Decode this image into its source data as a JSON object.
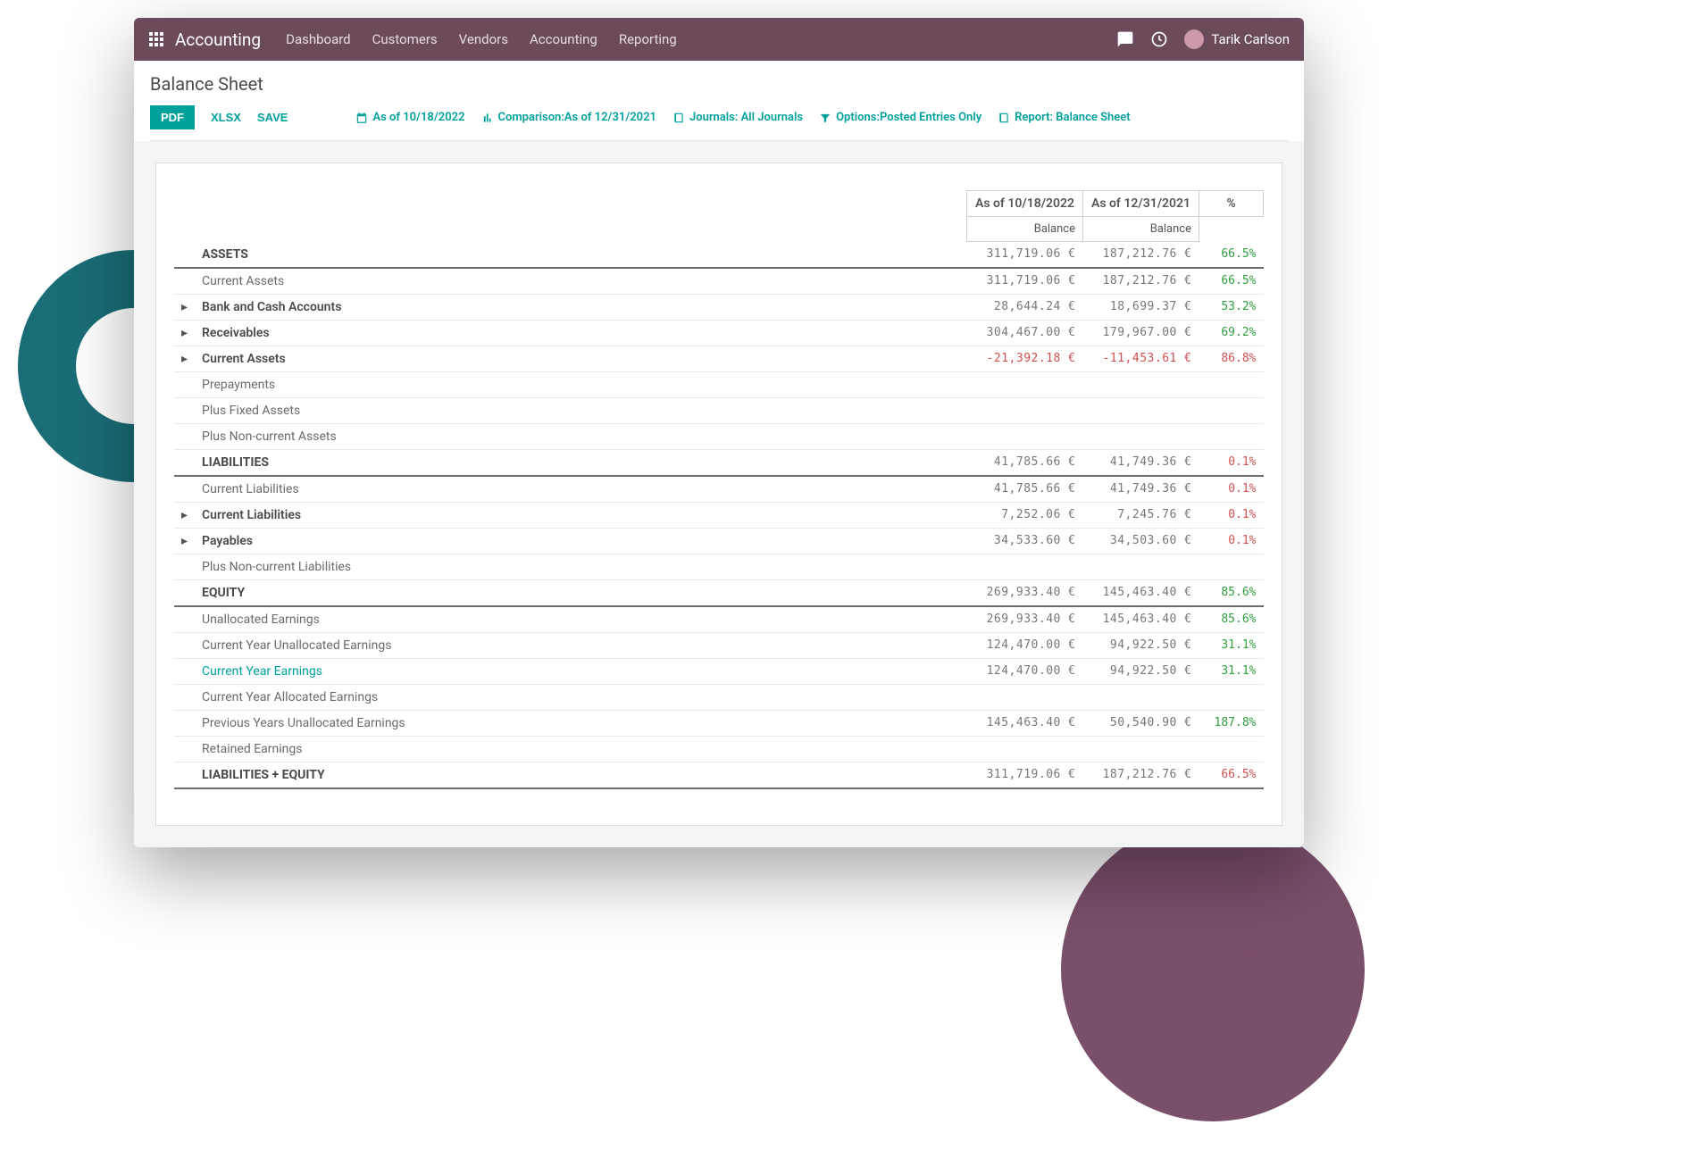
{
  "colors": {
    "accent": "#00a09d",
    "topbar": "#6b4a5b",
    "positive": "#2e9e3f",
    "negative": "#d35050",
    "bg_teal": "#1a6d77",
    "bg_purple": "#7a4f6a"
  },
  "topbar": {
    "app_name": "Accounting",
    "nav": [
      "Dashboard",
      "Customers",
      "Vendors",
      "Accounting",
      "Reporting"
    ],
    "user_name": "Tarik Carlson"
  },
  "page": {
    "title": "Balance Sheet"
  },
  "toolbar": {
    "pdf": "PDF",
    "xlsx": "XLSX",
    "save": "SAVE",
    "as_of": "As of 10/18/2022",
    "comparison": "Comparison:As of 12/31/2021",
    "journals": "Journals: All Journals",
    "options": "Options:Posted Entries Only",
    "report": "Report: Balance Sheet"
  },
  "table": {
    "header": {
      "col1": "As of 10/18/2022",
      "col2": "As of 12/31/2021",
      "pct": "%",
      "balance": "Balance"
    },
    "rows": [
      {
        "label": "ASSETS",
        "indent": 0,
        "section": true,
        "v1": "311,719.06 €",
        "v2": "187,212.76 €",
        "pct": "66.5%",
        "pct_sign": "pos"
      },
      {
        "label": "Current Assets",
        "indent": 1,
        "v1": "311,719.06 €",
        "v2": "187,212.76 €",
        "pct": "66.5%",
        "pct_sign": "pos"
      },
      {
        "label": "Bank and Cash Accounts",
        "indent": 2,
        "caret": true,
        "v1": "28,644.24 €",
        "v2": "18,699.37 €",
        "pct": "53.2%",
        "pct_sign": "pos"
      },
      {
        "label": "Receivables",
        "indent": 2,
        "caret": true,
        "v1": "304,467.00 €",
        "v2": "179,967.00 €",
        "pct": "69.2%",
        "pct_sign": "pos"
      },
      {
        "label": "Current Assets",
        "indent": 2,
        "caret": true,
        "v1": "-21,392.18 €",
        "v1_neg": true,
        "v2": "-11,453.61 €",
        "v2_neg": true,
        "pct": "86.8%",
        "pct_sign": "neg"
      },
      {
        "label": "Prepayments",
        "indent": 2,
        "light": true
      },
      {
        "label": "Plus Fixed Assets",
        "indent": 1
      },
      {
        "label": "Plus Non-current Assets",
        "indent": 1
      },
      {
        "label": "LIABILITIES",
        "indent": 0,
        "section": true,
        "v1": "41,785.66 €",
        "v2": "41,749.36 €",
        "pct": "0.1%",
        "pct_sign": "neg"
      },
      {
        "label": "Current Liabilities",
        "indent": 1,
        "v1": "41,785.66 €",
        "v2": "41,749.36 €",
        "pct": "0.1%",
        "pct_sign": "neg"
      },
      {
        "label": "Current Liabilities",
        "indent": 2,
        "caret": true,
        "v1": "7,252.06 €",
        "v2": "7,245.76 €",
        "pct": "0.1%",
        "pct_sign": "neg"
      },
      {
        "label": "Payables",
        "indent": 2,
        "caret": true,
        "v1": "34,533.60 €",
        "v2": "34,503.60 €",
        "pct": "0.1%",
        "pct_sign": "neg"
      },
      {
        "label": "Plus Non-current Liabilities",
        "indent": 1
      },
      {
        "label": "EQUITY",
        "indent": 0,
        "section": true,
        "v1": "269,933.40 €",
        "v2": "145,463.40 €",
        "pct": "85.6%",
        "pct_sign": "pos"
      },
      {
        "label": "Unallocated Earnings",
        "indent": 1,
        "v1": "269,933.40 €",
        "v2": "145,463.40 €",
        "pct": "85.6%",
        "pct_sign": "pos"
      },
      {
        "label": "Current Year Unallocated Earnings",
        "indent": 2,
        "light": true,
        "v1": "124,470.00 €",
        "v2": "94,922.50 €",
        "pct": "31.1%",
        "pct_sign": "pos"
      },
      {
        "label": "Current Year Earnings",
        "indent": 3,
        "link": true,
        "v1": "124,470.00 €",
        "v2": "94,922.50 €",
        "pct": "31.1%",
        "pct_sign": "pos"
      },
      {
        "label": "Current Year Allocated Earnings",
        "indent": 3
      },
      {
        "label": "Previous Years Unallocated Earnings",
        "indent": 2,
        "light": true,
        "v1": "145,463.40 €",
        "v2": "50,540.90 €",
        "pct": "187.8%",
        "pct_sign": "pos"
      },
      {
        "label": "Retained Earnings",
        "indent": 1
      },
      {
        "label": "LIABILITIES + EQUITY",
        "indent": 0,
        "section": true,
        "v1": "311,719.06 €",
        "v2": "187,212.76 €",
        "pct": "66.5%",
        "pct_sign": "neg"
      }
    ]
  }
}
